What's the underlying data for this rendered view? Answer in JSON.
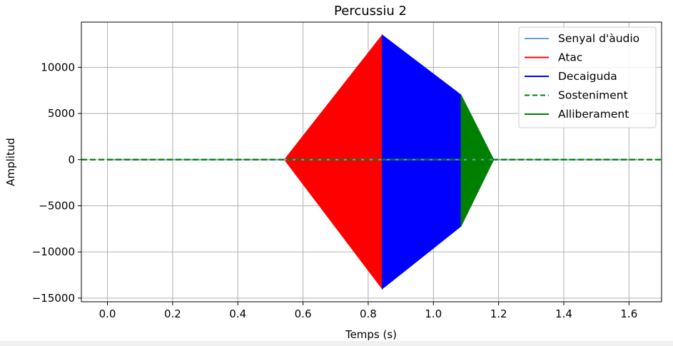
{
  "chart_data": {
    "type": "area",
    "title": "Percussiu 2",
    "xlabel": "Temps (s)",
    "ylabel": "Amplitud",
    "xlim": [
      -0.08,
      1.7
    ],
    "ylim": [
      -15400,
      14900
    ],
    "x_ticks": [
      0.0,
      0.2,
      0.4,
      0.6,
      0.8,
      1.0,
      1.2,
      1.4,
      1.6
    ],
    "x_tick_labels": [
      "0.0",
      "0.2",
      "0.4",
      "0.6",
      "0.8",
      "1.0",
      "1.2",
      "1.4",
      "1.6"
    ],
    "y_ticks": [
      10000,
      5000,
      0,
      -5000,
      -10000,
      -15000
    ],
    "y_tick_labels": [
      "10000",
      "5000",
      "0",
      "−5000",
      "−10000",
      "−15000"
    ],
    "grid": true,
    "legend_position": "top-right",
    "legend": [
      {
        "label": "Senyal d'àudio",
        "color": "#6a9fcf",
        "style": "solid"
      },
      {
        "label": "Atac",
        "color": "#ff0000",
        "style": "solid"
      },
      {
        "label": "Decaiguda",
        "color": "#0000ff",
        "style": "solid"
      },
      {
        "label": "Sosteniment",
        "color": "#008000",
        "style": "dashed"
      },
      {
        "label": "Alliberament",
        "color": "#008000",
        "style": "solid"
      }
    ],
    "series": [
      {
        "name": "Senyal d'àudio",
        "color": "#6a9fcf",
        "kind": "line",
        "x": [
          0.0,
          1.625
        ],
        "y": [
          0,
          0
        ]
      },
      {
        "name": "Atac",
        "color": "#ff0000",
        "kind": "area",
        "x": [
          0.543,
          0.843
        ],
        "upper": [
          0,
          13500
        ],
        "lower": [
          0,
          -14000
        ]
      },
      {
        "name": "Decaiguda",
        "color": "#0000ff",
        "kind": "area",
        "x": [
          0.843,
          1.085
        ],
        "upper": [
          13500,
          7000
        ],
        "lower": [
          -14000,
          -7200
        ]
      },
      {
        "name": "Sosteniment",
        "color": "#008000",
        "kind": "dashed-line",
        "x": [
          -0.08,
          1.7
        ],
        "y": [
          0,
          0
        ]
      },
      {
        "name": "Alliberament",
        "color": "#008000",
        "kind": "area",
        "x": [
          1.085,
          1.185
        ],
        "upper": [
          7000,
          0
        ],
        "lower": [
          -7200,
          0
        ]
      }
    ]
  }
}
